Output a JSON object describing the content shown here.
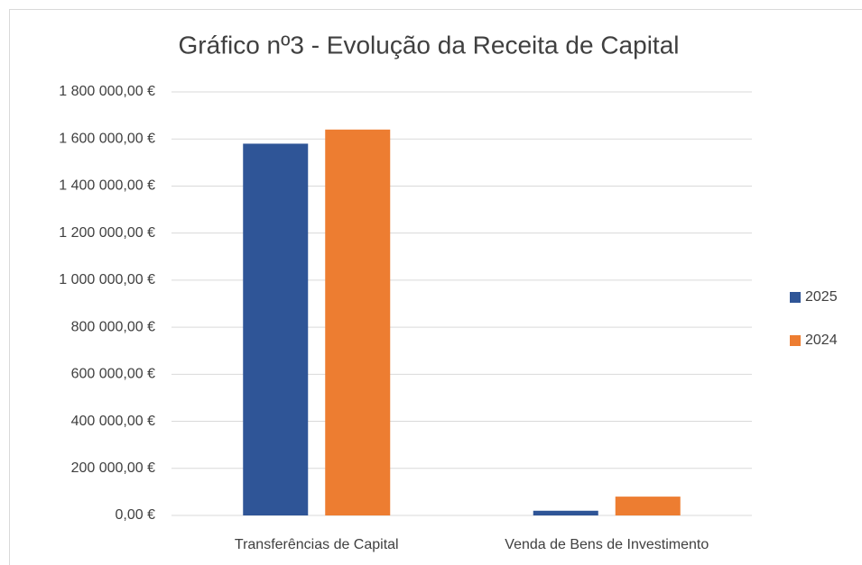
{
  "chart_data": {
    "type": "bar",
    "title": "Gráfico nº3 - Evolução da Receita de Capital",
    "categories": [
      "Transferências de Capital",
      "Venda de Bens de Investimento"
    ],
    "series": [
      {
        "name": "2025",
        "color": "#2f5597",
        "values": [
          1580000,
          20000
        ]
      },
      {
        "name": "2024",
        "color": "#ed7d31",
        "values": [
          1640000,
          80000
        ]
      }
    ],
    "ylim": [
      0,
      1800000
    ],
    "yticks": [
      {
        "value": 0,
        "label": "0,00 €"
      },
      {
        "value": 200000,
        "label": "200 000,00 €"
      },
      {
        "value": 400000,
        "label": "400 000,00 €"
      },
      {
        "value": 600000,
        "label": "600 000,00 €"
      },
      {
        "value": 800000,
        "label": "800 000,00 €"
      },
      {
        "value": 1000000,
        "label": "1 000 000,00 €"
      },
      {
        "value": 1200000,
        "label": "1 200 000,00 €"
      },
      {
        "value": 1400000,
        "label": "1 400 000,00 €"
      },
      {
        "value": 1600000,
        "label": "1 600 000,00 €"
      },
      {
        "value": 1800000,
        "label": "1 800 000,00 €"
      }
    ],
    "grid": true,
    "legend": "right"
  }
}
